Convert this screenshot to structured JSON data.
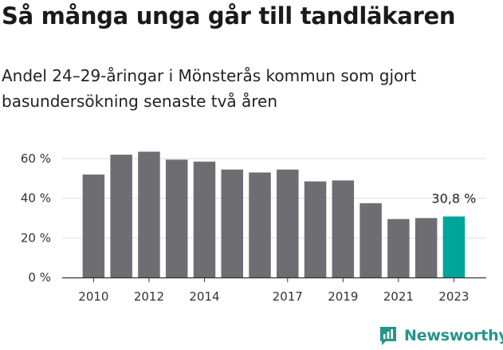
{
  "title": "Så många unga går till tandläkaren",
  "subtitle": "Andel 24–29-åringar i Mönsterås kommun som gjort basundersökning senaste två åren",
  "brand": "Newsworthy",
  "colors": {
    "bar": "#6e6d72",
    "highlight": "#00a59a",
    "brand": "#24958a",
    "grid": "#dddddd"
  },
  "chart_data": {
    "type": "bar",
    "categories": [
      "2010",
      "2011",
      "2012",
      "2013",
      "2014",
      "2015",
      "2016",
      "2017",
      "2018",
      "2019",
      "2020",
      "2021",
      "2022",
      "2023"
    ],
    "values": [
      52,
      62,
      63.5,
      59.5,
      58.5,
      54.5,
      53,
      54.5,
      48.5,
      49,
      37.5,
      29.5,
      30,
      30.8
    ],
    "x_tick_labels": [
      "2010",
      "2012",
      "2014",
      "2017",
      "2019",
      "2021",
      "2023"
    ],
    "y_ticks": [
      0,
      20,
      40,
      60
    ],
    "y_tick_labels": [
      "0 %",
      "20 %",
      "40 %",
      "60 %"
    ],
    "ylim": [
      0,
      65
    ],
    "highlight_index": 13,
    "annotation": "30,8 %",
    "grid": true
  }
}
